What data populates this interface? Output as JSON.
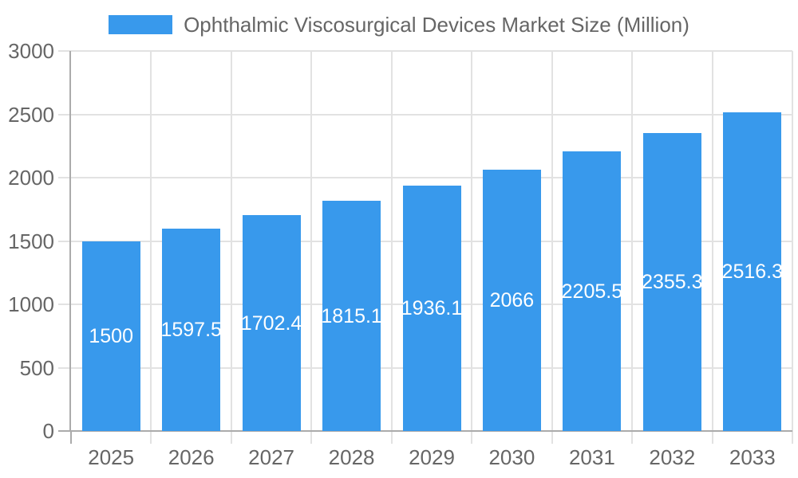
{
  "chart_data": {
    "type": "bar",
    "title": "Ophthalmic Viscosurgical Devices Market Size (Million)",
    "categories": [
      "2025",
      "2026",
      "2027",
      "2028",
      "2029",
      "2030",
      "2031",
      "2032",
      "2033"
    ],
    "values": [
      1500,
      1597.5,
      1702.4,
      1815.1,
      1936.1,
      2066,
      2205.5,
      2355.3,
      2516.3
    ],
    "bar_labels": [
      "1500",
      "1597.5",
      "1702.4",
      "1815.1",
      "1936.1",
      "2066",
      "2205.5",
      "2355.3",
      "2516.3"
    ],
    "xlabel": "",
    "ylabel": "",
    "ylim": [
      0,
      3000
    ],
    "yticks": [
      0,
      500,
      1000,
      1500,
      2000,
      2500,
      3000
    ],
    "grid": true,
    "legend_position": "top",
    "bar_label_position": "inside-center",
    "colors": {
      "bar": "#3899EC",
      "bar_label_text": "#FFFFFF",
      "legend_title_text": "#666666",
      "axis_tick_text": "#666666",
      "gridline": "#E2E2E2",
      "axis_line": "#ABABAB",
      "background": "#FFFFFF"
    }
  }
}
